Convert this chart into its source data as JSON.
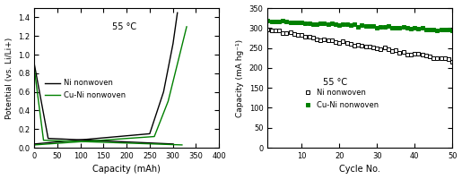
{
  "left": {
    "title": "55 °C",
    "xlabel": "Capacity (mAh)",
    "ylabel": "Potential (vs. Li/Li+)",
    "xlim": [
      0,
      400
    ],
    "ylim": [
      0,
      1.5
    ],
    "yticks": [
      0.0,
      0.2,
      0.4,
      0.6,
      0.8,
      1.0,
      1.2,
      1.4
    ],
    "xticks": [
      0,
      50,
      100,
      150,
      200,
      250,
      300,
      350,
      400
    ],
    "ni_color": "#000000",
    "cuni_color": "#008000",
    "legend_labels": [
      "Ni nonwoven",
      "Cu-Ni nonwoven"
    ]
  },
  "right": {
    "title": "55 °C",
    "xlabel": "Cycle No.",
    "ylabel": "Capacity (mA hg⁻¹)",
    "xlim": [
      1,
      50
    ],
    "ylim": [
      0,
      350
    ],
    "yticks": [
      0,
      50,
      100,
      150,
      200,
      250,
      300,
      350
    ],
    "xticks": [
      10,
      20,
      30,
      40,
      50
    ],
    "ni_color": "#000000",
    "cuni_color": "#008000",
    "legend_labels": [
      "Ni nonwoven",
      "Cu-Ni nonwoven"
    ]
  }
}
